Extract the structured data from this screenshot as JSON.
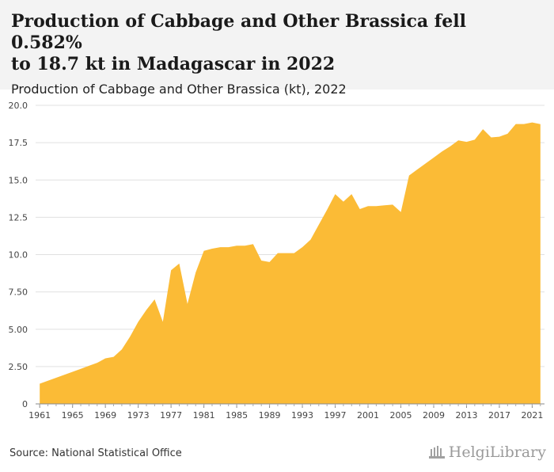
{
  "header": {
    "title_line1": "Production of Cabbage and Other Brassica fell 0.582%",
    "title_line2": "to 18.7 kt in Madagascar in 2022",
    "subtitle": "Production of Cabbage and Other Brassica (kt), 2022"
  },
  "footer": {
    "source": "Source: National Statistical Office",
    "brand": "HelgiLibrary"
  },
  "colors": {
    "area": "#fbbb36",
    "header_bg": "#f3f3f3",
    "grid": "#e0e0e0"
  },
  "chart_data": {
    "type": "area",
    "title": "Production of Cabbage and Other Brassica (kt), 2022",
    "ylabel": "",
    "xlabel": "",
    "ylim": [
      0,
      20
    ],
    "yticks": [
      "0",
      "2.50",
      "5.00",
      "7.50",
      "10.0",
      "12.5",
      "15.0",
      "17.5",
      "20.0"
    ],
    "xticks": [
      "1961",
      "1965",
      "1969",
      "1973",
      "1977",
      "1981",
      "1985",
      "1989",
      "1993",
      "1997",
      "2001",
      "2005",
      "2009",
      "2013",
      "2017",
      "2021"
    ],
    "x": [
      1961,
      1962,
      1963,
      1964,
      1965,
      1966,
      1967,
      1968,
      1969,
      1970,
      1971,
      1972,
      1973,
      1974,
      1975,
      1976,
      1977,
      1978,
      1979,
      1980,
      1981,
      1982,
      1983,
      1984,
      1985,
      1986,
      1987,
      1988,
      1989,
      1990,
      1991,
      1992,
      1993,
      1994,
      1995,
      1996,
      1997,
      1998,
      1999,
      2000,
      2001,
      2002,
      2003,
      2004,
      2005,
      2006,
      2007,
      2008,
      2009,
      2010,
      2011,
      2012,
      2013,
      2014,
      2015,
      2016,
      2017,
      2018,
      2019,
      2020,
      2021,
      2022
    ],
    "series": [
      {
        "values": [
          1.35,
          1.55,
          1.75,
          1.95,
          2.15,
          2.35,
          2.55,
          2.75,
          3.05,
          3.15,
          3.65,
          4.5,
          5.5,
          6.3,
          7.0,
          5.5,
          8.95,
          9.4,
          6.7,
          8.8,
          10.25,
          10.4,
          10.5,
          10.5,
          10.6,
          10.6,
          10.7,
          9.6,
          9.5,
          10.1,
          10.1,
          10.1,
          10.5,
          11.0,
          12.0,
          13.0,
          14.05,
          13.55,
          14.05,
          13.05,
          13.25,
          13.25,
          13.3,
          13.35,
          12.85,
          15.3,
          15.7,
          16.1,
          16.5,
          16.9,
          17.25,
          17.65,
          17.55,
          17.7,
          18.4,
          17.85,
          17.9,
          18.1,
          18.75,
          18.75,
          18.85,
          18.74
        ]
      }
    ],
    "grid": true,
    "legend": "none"
  }
}
